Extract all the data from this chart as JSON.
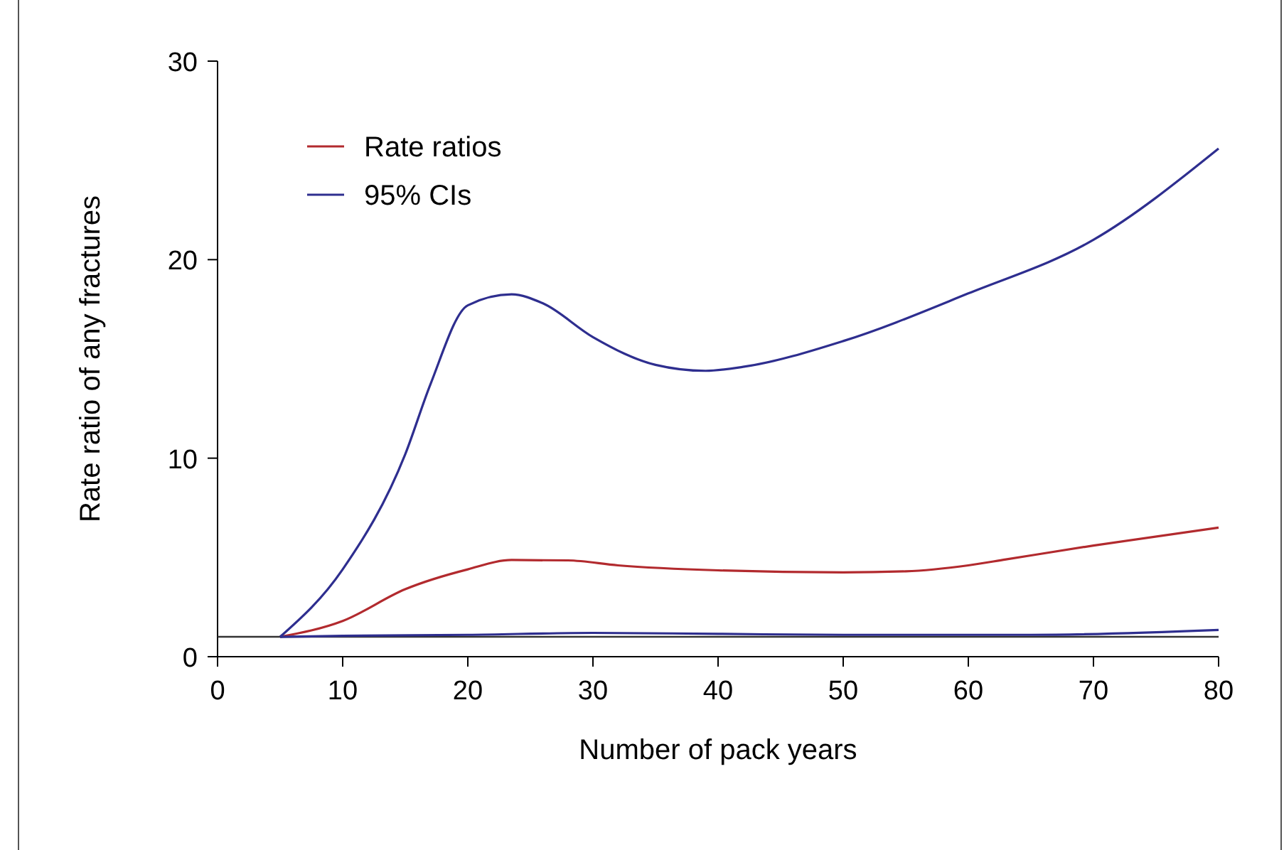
{
  "chart_data": {
    "type": "line",
    "xlabel": "Number of pack years",
    "ylabel": "Rate ratio of any fractures",
    "xlim": [
      0,
      80
    ],
    "xticks": [
      0,
      10,
      20,
      30,
      40,
      50,
      60,
      70,
      80
    ],
    "ylim": [
      0,
      30
    ],
    "yticks": [
      0,
      10,
      20,
      30
    ],
    "legend": "top left",
    "grid": false,
    "line_style": "solid",
    "ref_lines": [
      {
        "axis": "y",
        "value": 1,
        "color": "#333333"
      }
    ],
    "series": [
      {
        "name": "Rate ratios",
        "color": "#b22a2e",
        "x": [
          5,
          10,
          15,
          20,
          23.5,
          28,
          32,
          40,
          50,
          55,
          60,
          63,
          70,
          80
        ],
        "values": [
          1,
          1.8,
          3.4,
          4.4,
          4.87,
          4.85,
          4.6,
          4.35,
          4.25,
          4.3,
          4.6,
          4.9,
          5.6,
          6.5
        ]
      },
      {
        "name": "95% CIs",
        "color": "#2e2e8f",
        "x": [
          5,
          10,
          15,
          17,
          20,
          23.5,
          26,
          30,
          35,
          39,
          42,
          50,
          60,
          70,
          80
        ],
        "values": [
          1,
          4.4,
          10.2,
          13.7,
          17.7,
          18.25,
          17.8,
          16.1,
          14.7,
          14.4,
          14.6,
          15.9,
          18.3,
          21,
          25.6
        ]
      },
      {
        "color": "#2e2e8f",
        "x": [
          5,
          10,
          20,
          30,
          40,
          50,
          65,
          80
        ],
        "values": [
          1,
          1.05,
          1.1,
          1.2,
          1.15,
          1.1,
          1.1,
          1.35
        ]
      }
    ]
  }
}
